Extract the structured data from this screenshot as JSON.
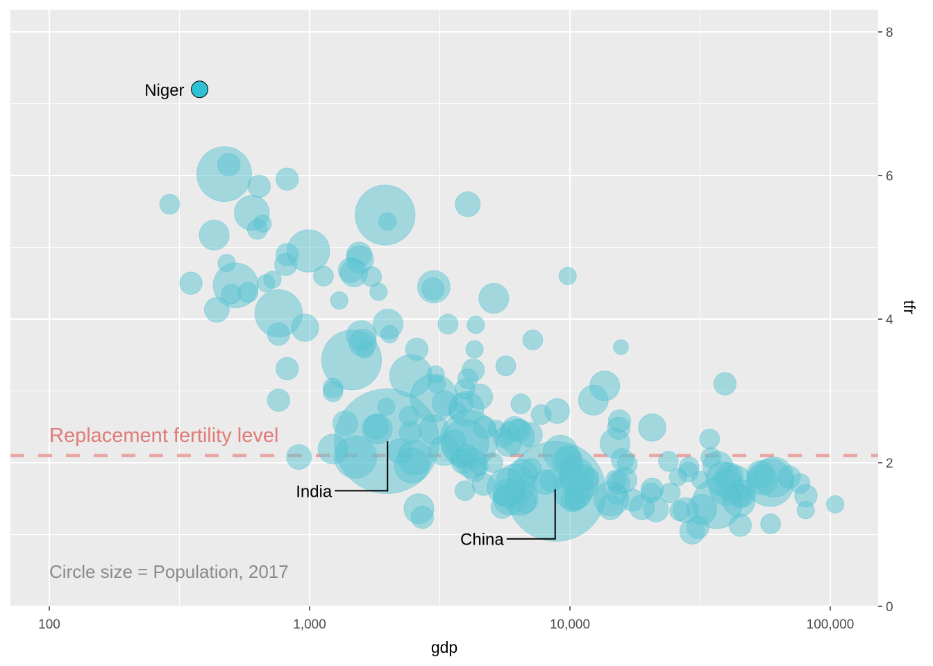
{
  "chart_data": {
    "type": "scatter",
    "title": "",
    "xlabel": "gdp",
    "ylabel": "tfr",
    "x_scale": "log10",
    "xlim": [
      70,
      150000
    ],
    "ylim": [
      0,
      8.2
    ],
    "x_ticks": [
      100,
      1000,
      10000,
      100000
    ],
    "x_tick_labels": [
      "100",
      "1,000",
      "10,000",
      "100,000"
    ],
    "y_ticks": [
      0,
      2,
      4,
      6,
      8
    ],
    "y_tick_labels": [
      "0",
      "2",
      "4",
      "6",
      "8"
    ],
    "y_axis_position": "right",
    "grid": true,
    "size_variable": "Population, 2017",
    "colors": {
      "panel": "#ebebeb",
      "grid": "#ffffff",
      "bubble": "#5bc3d1",
      "bubble_stroke": "#39bcd0",
      "highlight": "#2fc1d3",
      "reference_line": "#e8a6a4",
      "reference_text": "#e07b77",
      "caption_text": "#8a8a8a",
      "label_text": "#000000"
    },
    "reference_line": {
      "y": 2.1,
      "label": "Replacement fertility level",
      "style": "dashed"
    },
    "caption": "Circle size = Population, 2017",
    "highlight": {
      "name": "Niger",
      "gdp": 378,
      "tfr": 7.2
    },
    "labels": [
      {
        "name": "Niger",
        "gdp": 378,
        "tfr": 7.2
      },
      {
        "name": "India",
        "gdp": 1980,
        "tfr": 2.3
      },
      {
        "name": "China",
        "gdp": 8830,
        "tfr": 1.6
      }
    ],
    "points": [
      [
        290,
        5.6,
        8
      ],
      [
        470,
        6.02,
        22
      ],
      [
        490,
        6.15,
        9
      ],
      [
        640,
        5.85,
        9
      ],
      [
        820,
        5.95,
        9
      ],
      [
        600,
        5.48,
        14
      ],
      [
        660,
        5.33,
        7
      ],
      [
        630,
        5.25,
        8
      ],
      [
        430,
        5.17,
        12
      ],
      [
        480,
        4.78,
        7
      ],
      [
        820,
        4.9,
        9
      ],
      [
        810,
        4.76,
        9
      ],
      [
        350,
        4.5,
        9
      ],
      [
        520,
        4.47,
        18
      ],
      [
        500,
        4.35,
        8
      ],
      [
        580,
        4.37,
        8
      ],
      [
        680,
        4.5,
        7
      ],
      [
        720,
        4.55,
        7
      ],
      [
        990,
        4.95,
        17
      ],
      [
        1950,
        5.45,
        24
      ],
      [
        1990,
        5.36,
        7
      ],
      [
        4050,
        5.6,
        10
      ],
      [
        1550,
        4.9,
        10
      ],
      [
        1560,
        4.83,
        11
      ],
      [
        1440,
        4.68,
        10
      ],
      [
        1480,
        4.64,
        11
      ],
      [
        1730,
        4.59,
        8
      ],
      [
        1840,
        4.38,
        7
      ],
      [
        1130,
        4.6,
        8
      ],
      [
        1300,
        4.26,
        7
      ],
      [
        3000,
        4.45,
        13
      ],
      [
        2980,
        4.42,
        9
      ],
      [
        5100,
        4.29,
        12
      ],
      [
        9800,
        4.6,
        7
      ],
      [
        440,
        4.13,
        10
      ],
      [
        760,
        4.08,
        19
      ],
      [
        760,
        3.79,
        9
      ],
      [
        960,
        3.88,
        11
      ],
      [
        2000,
        3.93,
        12
      ],
      [
        2030,
        3.79,
        7
      ],
      [
        1580,
        3.77,
        12
      ],
      [
        1600,
        3.67,
        11
      ],
      [
        1630,
        3.58,
        7
      ],
      [
        1450,
        3.43,
        24
      ],
      [
        3400,
        3.93,
        8
      ],
      [
        4350,
        3.92,
        7
      ],
      [
        4300,
        3.58,
        7
      ],
      [
        4250,
        3.29,
        9
      ],
      [
        4050,
        3.17,
        8
      ],
      [
        2580,
        3.58,
        9
      ],
      [
        2450,
        3.21,
        17
      ],
      [
        3050,
        3.23,
        7
      ],
      [
        3080,
        3.09,
        7
      ],
      [
        3000,
        2.9,
        19
      ],
      [
        3300,
        2.83,
        10
      ],
      [
        3900,
        2.83,
        8
      ],
      [
        4000,
        2.75,
        14
      ],
      [
        3700,
        2.71,
        7
      ],
      [
        3950,
        3.03,
        8
      ],
      [
        4520,
        2.92,
        10
      ],
      [
        5670,
        3.35,
        8
      ],
      [
        7200,
        3.71,
        8
      ],
      [
        15700,
        3.61,
        6
      ],
      [
        39400,
        3.1,
        9
      ],
      [
        13600,
        3.07,
        12
      ],
      [
        12300,
        2.87,
        12
      ],
      [
        8930,
        2.72,
        10
      ],
      [
        7750,
        2.67,
        8
      ],
      [
        6480,
        2.82,
        8
      ],
      [
        820,
        3.31,
        9
      ],
      [
        760,
        2.87,
        9
      ],
      [
        1230,
        3.04,
        8
      ],
      [
        1230,
        2.99,
        8
      ],
      [
        1970,
        2.78,
        7
      ],
      [
        2410,
        2.65,
        8
      ],
      [
        1370,
        2.55,
        10
      ],
      [
        1800,
        2.5,
        10
      ],
      [
        2440,
        2.42,
        9
      ],
      [
        3000,
        2.46,
        12
      ],
      [
        4700,
        2.49,
        9
      ],
      [
        5230,
        2.47,
        7
      ],
      [
        5840,
        2.45,
        7
      ],
      [
        6130,
        2.47,
        10
      ],
      [
        6400,
        2.45,
        9
      ],
      [
        6250,
        2.36,
        14
      ],
      [
        7020,
        2.39,
        10
      ],
      [
        5550,
        2.35,
        8
      ],
      [
        5800,
        2.26,
        10
      ],
      [
        4100,
        2.33,
        23
      ],
      [
        3950,
        2.27,
        19
      ],
      [
        3600,
        2.3,
        9
      ],
      [
        3280,
        2.17,
        12
      ],
      [
        3900,
        2.02,
        10
      ],
      [
        4200,
        1.99,
        12
      ],
      [
        4300,
        1.89,
        9
      ],
      [
        3780,
        2.05,
        7
      ],
      [
        4000,
        2.12,
        8
      ],
      [
        4500,
        1.95,
        7
      ],
      [
        3950,
        1.61,
        8
      ],
      [
        4650,
        1.7,
        9
      ],
      [
        5060,
        2.0,
        8
      ],
      [
        1500,
        2.08,
        17
      ],
      [
        1230,
        2.19,
        12
      ],
      [
        910,
        2.08,
        10
      ],
      [
        2220,
        2.16,
        10
      ],
      [
        2540,
        2.07,
        14
      ],
      [
        2470,
        1.96,
        14
      ],
      [
        1980,
        2.3,
        42
      ],
      [
        1820,
        2.47,
        12
      ],
      [
        2630,
        1.36,
        12
      ],
      [
        2710,
        1.24,
        9
      ],
      [
        15500,
        2.58,
        9
      ],
      [
        15400,
        2.48,
        9
      ],
      [
        14900,
        2.27,
        12
      ],
      [
        15900,
        2.04,
        9
      ],
      [
        16600,
        1.98,
        8
      ],
      [
        20700,
        2.49,
        11
      ],
      [
        23900,
        2.02,
        8
      ],
      [
        34400,
        2.33,
        8
      ],
      [
        34800,
        2.07,
        8
      ],
      [
        28700,
        1.94,
        8
      ],
      [
        28500,
        1.87,
        8
      ],
      [
        31700,
        1.76,
        7
      ],
      [
        26000,
        1.8,
        7
      ],
      [
        37000,
        1.95,
        12
      ],
      [
        38900,
        1.77,
        14
      ],
      [
        41000,
        1.81,
        11
      ],
      [
        40000,
        1.65,
        14
      ],
      [
        43000,
        1.7,
        15
      ],
      [
        45800,
        1.57,
        11
      ],
      [
        45000,
        1.53,
        9
      ],
      [
        44600,
        1.47,
        13
      ],
      [
        53900,
        1.84,
        11
      ],
      [
        54900,
        1.76,
        12
      ],
      [
        58700,
        1.72,
        19
      ],
      [
        60700,
        1.8,
        16
      ],
      [
        69600,
        1.8,
        9
      ],
      [
        76500,
        1.71,
        8
      ],
      [
        80600,
        1.54,
        9
      ],
      [
        80500,
        1.34,
        7
      ],
      [
        104500,
        1.42,
        7
      ],
      [
        45100,
        1.13,
        9
      ],
      [
        59000,
        1.15,
        8
      ],
      [
        29500,
        1.04,
        10
      ],
      [
        31000,
        1.1,
        9
      ],
      [
        36700,
        1.43,
        20
      ],
      [
        32100,
        1.35,
        12
      ],
      [
        27800,
        1.34,
        10
      ],
      [
        26400,
        1.33,
        8
      ],
      [
        21400,
        1.35,
        10
      ],
      [
        18900,
        1.38,
        10
      ],
      [
        17400,
        1.48,
        9
      ],
      [
        20700,
        1.63,
        9
      ],
      [
        20500,
        1.58,
        8
      ],
      [
        24300,
        1.58,
        8
      ],
      [
        14400,
        1.5,
        14
      ],
      [
        14300,
        1.38,
        10
      ],
      [
        15100,
        1.56,
        8
      ],
      [
        15400,
        1.72,
        9
      ],
      [
        16200,
        1.76,
        10
      ],
      [
        15000,
        1.76,
        8
      ],
      [
        11700,
        1.78,
        9
      ],
      [
        10600,
        1.83,
        14
      ],
      [
        10100,
        1.9,
        9
      ],
      [
        10900,
        1.73,
        15
      ],
      [
        10300,
        1.62,
        16
      ],
      [
        10700,
        1.54,
        10
      ],
      [
        10200,
        1.47,
        9
      ],
      [
        10500,
        1.47,
        8
      ],
      [
        9800,
        2.03,
        12
      ],
      [
        9900,
        2.05,
        10
      ],
      [
        9200,
        2.14,
        14
      ],
      [
        8830,
        1.6,
        40
      ],
      [
        8020,
        1.73,
        10
      ],
      [
        8500,
        1.75,
        9
      ],
      [
        6570,
        1.84,
        12
      ],
      [
        6150,
        1.7,
        16
      ],
      [
        5850,
        1.5,
        13
      ],
      [
        6450,
        1.51,
        14
      ],
      [
        6700,
        1.46,
        9
      ],
      [
        5680,
        1.66,
        15
      ],
      [
        5720,
        1.58,
        11
      ],
      [
        5490,
        1.38,
        9
      ],
      [
        5610,
        1.53,
        8
      ],
      [
        7100,
        1.92,
        8
      ]
    ]
  }
}
